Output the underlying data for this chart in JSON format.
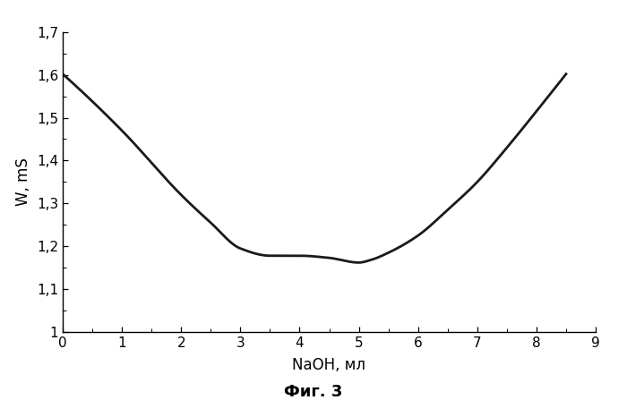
{
  "x": [
    0,
    1.0,
    2.0,
    2.5,
    3.0,
    3.5,
    4.0,
    4.5,
    5.0,
    5.2,
    5.5,
    6.0,
    6.5,
    7.0,
    7.5,
    8.0,
    8.5
  ],
  "y": [
    1.602,
    1.47,
    1.32,
    1.255,
    1.195,
    1.178,
    1.178,
    1.173,
    1.162,
    1.168,
    1.185,
    1.225,
    1.285,
    1.35,
    1.43,
    1.515,
    1.602
  ],
  "xlabel": "NaOH, мл",
  "ylabel": "W, mS",
  "caption": "Фиг. 3",
  "xlim": [
    0,
    9
  ],
  "ylim": [
    1.0,
    1.7
  ],
  "xticks": [
    0,
    1,
    2,
    3,
    4,
    5,
    6,
    7,
    8,
    9
  ],
  "yticks": [
    1.0,
    1.1,
    1.2,
    1.3,
    1.4,
    1.5,
    1.6,
    1.7
  ],
  "ytick_labels": [
    "1",
    "1,1",
    "1,2",
    "1,3",
    "1,4",
    "1,5",
    "1,6",
    "1,7"
  ],
  "line_color": "#1a1a1a",
  "line_width": 2.0,
  "background_color": "#ffffff",
  "figure_background": "#ffffff"
}
